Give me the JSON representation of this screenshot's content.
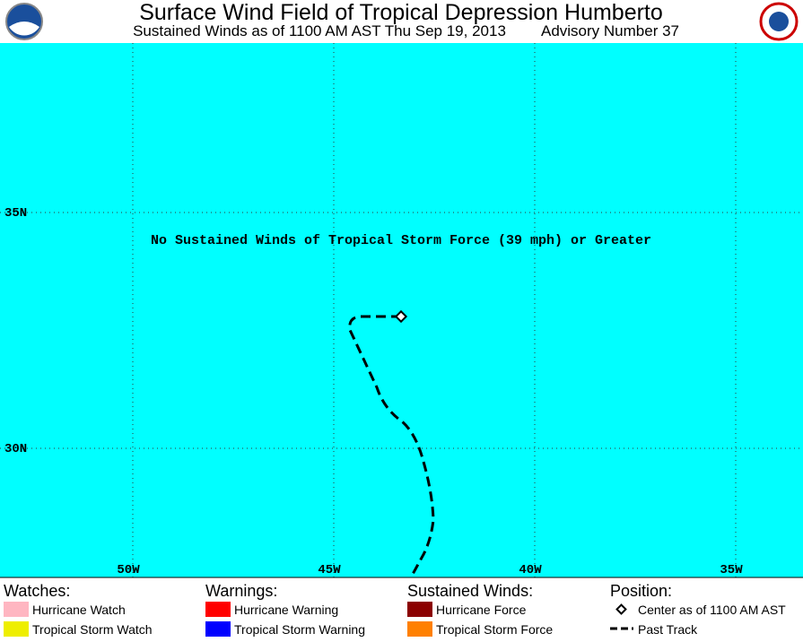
{
  "header": {
    "title": "Surface Wind Field of Tropical Depression Humberto",
    "subtitle": "Sustained Winds as of 1100 AM AST Thu Sep 19, 2013",
    "advisory": "Advisory Number 37"
  },
  "map": {
    "latitude_labels": [
      "35N",
      "30N"
    ],
    "longitude_labels": [
      "50W",
      "45W",
      "40W",
      "35W"
    ],
    "message": "No Sustained Winds of Tropical Storm Force (39 mph) or Greater"
  },
  "legend": {
    "watches": {
      "title": "Watches:",
      "items": [
        "Hurricane Watch",
        "Tropical Storm Watch"
      ]
    },
    "warnings": {
      "title": "Warnings:",
      "items": [
        "Hurricane Warning",
        "Tropical Storm Warning"
      ]
    },
    "sustained_winds": {
      "title": "Sustained Winds:",
      "items": [
        "Hurricane Force",
        "Tropical Storm Force"
      ]
    },
    "position": {
      "title": "Position:",
      "items": [
        "Center as of 1100 AM AST",
        "Past Track"
      ]
    }
  }
}
